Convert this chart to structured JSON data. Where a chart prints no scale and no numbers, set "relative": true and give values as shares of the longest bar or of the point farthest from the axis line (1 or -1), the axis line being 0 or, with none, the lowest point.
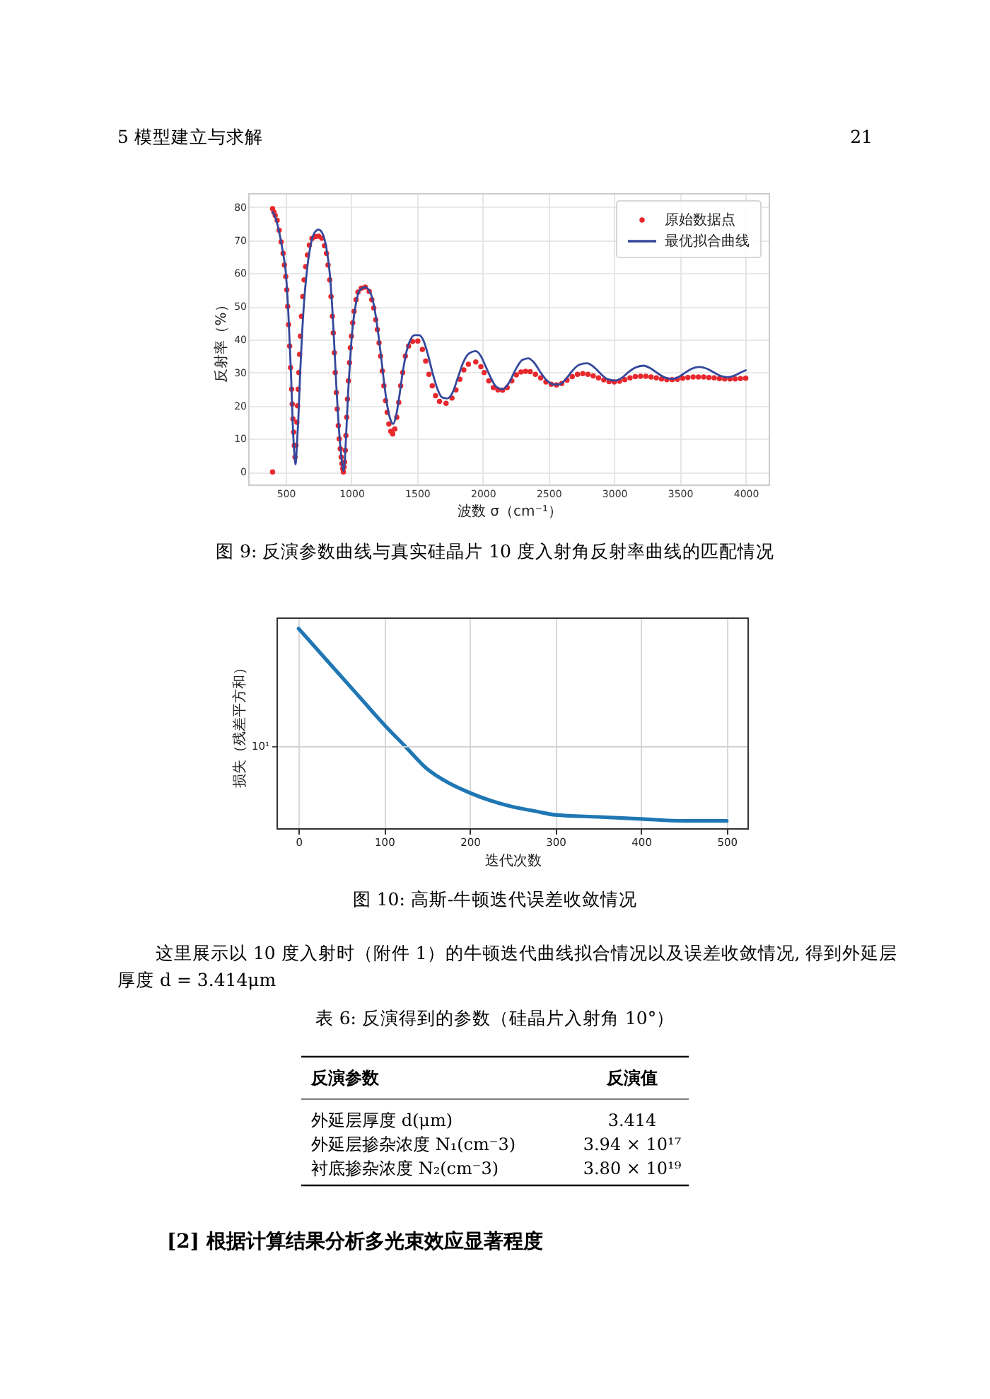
{
  "chart_data": [
    {
      "type": "other",
      "annotations": [
        "5 模型建立与求解",
        "21"
      ]
    },
    {
      "type": "line",
      "xlabel": "波数 σ（cm⁻¹）",
      "ylabel": "反射率（%）",
      "xlim": [
        220,
        4180
      ],
      "ylim": [
        -4,
        84
      ],
      "xticks": [
        500,
        1000,
        1500,
        2000,
        2500,
        3000,
        3500,
        4000
      ],
      "yticks": [
        0,
        10,
        20,
        30,
        40,
        50,
        60,
        70,
        80
      ],
      "grid": true,
      "legend": "top right",
      "annotations": [
        "图 9: 反演参数曲线与真实硅晶片 10 度入射角反射率曲线的匹配情况"
      ],
      "series": [
        {
          "name": "原始数据点",
          "type": "scatter",
          "color": "#e8282d",
          "x": [
            400,
            400,
            410,
            420,
            435,
            450,
            465,
            480,
            490,
            500,
            508,
            515,
            522,
            530,
            537,
            545,
            550,
            555,
            560,
            565,
            571,
            578,
            585,
            590,
            595,
            600,
            606,
            612,
            620,
            630,
            640,
            652,
            665,
            680,
            700,
            725,
            750,
            775,
            795,
            810,
            822,
            835,
            845,
            855,
            862,
            870,
            877,
            885,
            892,
            900,
            907,
            915,
            922,
            928,
            934,
            939,
            944,
            948,
            953,
            958,
            964,
            970,
            977,
            985,
            992,
            1000,
            1010,
            1020,
            1035,
            1050,
            1075,
            1105,
            1135,
            1155,
            1170,
            1185,
            1197,
            1210,
            1222,
            1235,
            1247,
            1260,
            1272,
            1285,
            1300,
            1314,
            1330,
            1345,
            1360,
            1375,
            1390,
            1410,
            1435,
            1465,
            1505,
            1540,
            1565,
            1590,
            1615,
            1640,
            1670,
            1720,
            1765,
            1795,
            1825,
            1855,
            1890,
            1946,
            1985,
            2010,
            2045,
            2080,
            2115,
            2150,
            2185,
            2220,
            2255,
            2290,
            2325,
            2360,
            2400,
            2440,
            2480,
            2520,
            2560,
            2600,
            2640,
            2680,
            2720,
            2760,
            2800,
            2840,
            2880,
            2920,
            2960,
            3000,
            3040,
            3080,
            3120,
            3160,
            3200,
            3240,
            3280,
            3320,
            3360,
            3400,
            3440,
            3480,
            3520,
            3560,
            3600,
            3640,
            3680,
            3720,
            3760,
            3800,
            3840,
            3880,
            3920,
            3960,
            4000
          ],
          "values": [
            0,
            79.5,
            78.5,
            77.5,
            76,
            73,
            69.5,
            66,
            62.5,
            59,
            55,
            50,
            44.5,
            38,
            31.5,
            25,
            20.5,
            16,
            12,
            8,
            4.5,
            8,
            15,
            20,
            25,
            30,
            35.5,
            41,
            47,
            53,
            58,
            62,
            65.5,
            68.5,
            70.5,
            71.1,
            71.2,
            70.6,
            68.3,
            66,
            62.5,
            58,
            53,
            47,
            42,
            36,
            30,
            24,
            19,
            14,
            10,
            7,
            4.5,
            2.5,
            1,
            0,
            1.5,
            3,
            6.5,
            11,
            16.5,
            22,
            27.5,
            33,
            37.5,
            41,
            45,
            48.5,
            52,
            54.3,
            55.5,
            55.8,
            54.5,
            52,
            49.5,
            46,
            43,
            39,
            35,
            30.5,
            26,
            21.5,
            18,
            14.5,
            12.3,
            11.5,
            13,
            16.5,
            21,
            26,
            30,
            35,
            38,
            39.4,
            39.5,
            37,
            33.5,
            29.5,
            26,
            23,
            21.3,
            20.7,
            22.3,
            24.8,
            28,
            30.8,
            32.5,
            33.2,
            31.8,
            30,
            27.5,
            25.5,
            24.8,
            24.7,
            25.5,
            27.5,
            29.3,
            30.2,
            30.4,
            30.3,
            29.5,
            28.4,
            27.2,
            26.5,
            26.3,
            26.7,
            27.7,
            28.8,
            29.5,
            29.7,
            29.5,
            29,
            28.4,
            27.8,
            27.3,
            27.2,
            27.4,
            27.9,
            28.4,
            28.8,
            28.9,
            28.9,
            28.7,
            28.4,
            28.1,
            27.9,
            27.9,
            28,
            28.3,
            28.5,
            28.7,
            28.7,
            28.7,
            28.5,
            28.4,
            28.2,
            28.1,
            28.1,
            28.1,
            28.2,
            28.3
          ]
        },
        {
          "name": "最优拟合曲线",
          "type": "line",
          "color": "#34479b",
          "x": [
            400,
            420,
            450,
            480,
            500,
            520,
            540,
            555,
            565,
            575,
            585,
            596,
            610,
            625,
            645,
            665,
            690,
            720,
            750,
            780,
            810,
            835,
            855,
            870,
            885,
            900,
            915,
            928,
            939,
            950,
            962,
            975,
            990,
            1010,
            1035,
            1065,
            1105,
            1140,
            1170,
            1200,
            1225,
            1250,
            1275,
            1300,
            1318,
            1340,
            1365,
            1390,
            1420,
            1450,
            1480,
            1515,
            1550,
            1585,
            1620,
            1655,
            1690,
            1730,
            1770,
            1810,
            1850,
            1895,
            1945,
            1985,
            2020,
            2060,
            2100,
            2150,
            2200,
            2250,
            2300,
            2346,
            2390,
            2440,
            2490,
            2540,
            2580,
            2630,
            2680,
            2730,
            2793,
            2850,
            2900,
            2950,
            3007,
            3060,
            3110,
            3160,
            3222,
            3280,
            3330,
            3380,
            3436,
            3490,
            3540,
            3590,
            3650,
            3710,
            3760,
            3810,
            3865,
            3920,
            3960,
            4000
          ],
          "values": [
            78.5,
            77,
            72.5,
            66,
            60.5,
            48,
            30,
            13,
            6,
            2.3,
            8,
            16,
            30,
            42,
            54,
            62,
            68.5,
            72.3,
            73.2,
            72,
            67.5,
            60,
            49,
            38,
            26,
            16,
            8,
            3,
            0.3,
            4,
            13,
            24,
            34,
            44,
            51,
            55,
            55.8,
            54.5,
            50.5,
            43,
            35,
            26.5,
            19.5,
            15.5,
            14.5,
            17,
            23,
            30,
            36.5,
            40,
            41.3,
            41.3,
            39.5,
            35,
            29.5,
            25,
            22.5,
            22.2,
            24,
            28.5,
            33,
            35.8,
            36.5,
            35,
            32,
            28.5,
            25.8,
            25,
            27,
            31,
            33.8,
            34.3,
            33,
            30,
            27.5,
            26.4,
            26.4,
            28,
            30.5,
            32.3,
            32.8,
            31.5,
            29.5,
            28,
            27.6,
            28.5,
            30.2,
            31.5,
            32.1,
            31.2,
            29.8,
            28.6,
            28.1,
            28.7,
            30,
            31.2,
            31.7,
            31.1,
            30,
            29,
            28.6,
            29.2,
            30,
            30.7
          ]
        }
      ]
    },
    {
      "type": "line",
      "xlabel": "迭代次数",
      "ylabel": "损失（残差平方和）",
      "relative": true,
      "xlim": [
        -25,
        525
      ],
      "xticks": [
        0,
        100,
        200,
        300,
        400,
        500
      ],
      "grid": "x",
      "ref_lines": [
        {
          "axis": "y",
          "value": 0.41,
          "color": "#cfcfcf"
        }
      ],
      "annotations": [
        "图 10: 高斯-牛顿迭代误差收敛情况",
        "10¹"
      ],
      "series": [
        {
          "color": "#1f77b4",
          "x": [
            0,
            25,
            50,
            75,
            100,
            125,
            150,
            175,
            200,
            225,
            250,
            275,
            300,
            350,
            400,
            450,
            500
          ],
          "values": [
            1,
            0.88,
            0.76,
            0.64,
            0.52,
            0.41,
            0.3,
            0.23,
            0.18,
            0.14,
            0.11,
            0.09,
            0.07,
            0.06,
            0.05,
            0.04,
            0.04
          ]
        }
      ]
    },
    {
      "type": "other",
      "annotations": [
        "这里展示以 10 度入射时（附件 1）的牛顿迭代曲线拟合情况以及误差收敛情况, 得到外延层厚度 d = 3.414μm"
      ]
    },
    {
      "type": "other",
      "annotations": [
        "表 6: 反演得到的参数（硅晶片入射角 10°）",
        "反演参数",
        "反演值",
        "外延层厚度 d(μm)",
        "3.414",
        "外延层掺杂浓度 N₁(cm⁻3)",
        "3.94 × 10¹⁷",
        "衬底掺杂浓度 N₂(cm⁻3)",
        "3.80 × 10¹⁹"
      ]
    },
    {
      "type": "other",
      "annotations": [
        "[2] 根据计算结果分析多光束效应显著程度"
      ]
    }
  ]
}
